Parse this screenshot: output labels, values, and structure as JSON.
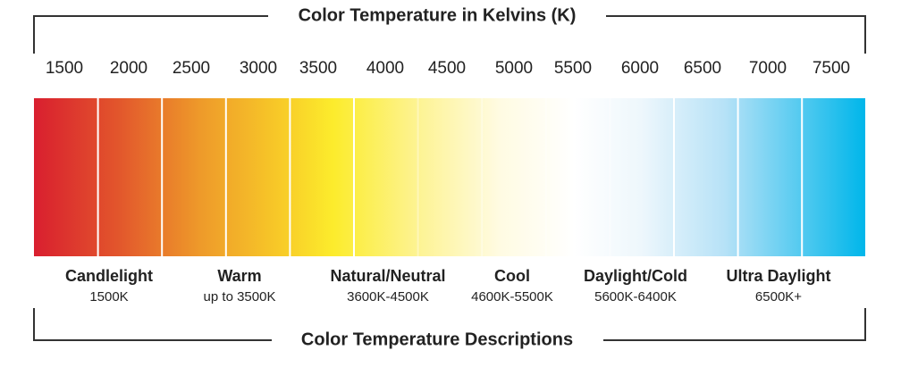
{
  "header": {
    "title": "Color Temperature in Kelvins (K)"
  },
  "scale": {
    "labels": [
      1500,
      2000,
      2500,
      3000,
      3500,
      4000,
      4500,
      5000,
      5500,
      6000,
      6500,
      7000,
      7500
    ]
  },
  "descriptions": [
    {
      "name": "Candlelight",
      "range": "1500K"
    },
    {
      "name": "Warm",
      "range": "up to 3500K"
    },
    {
      "name": "Natural/Neutral",
      "range": "3600K-4500K"
    },
    {
      "name": "Cool",
      "range": "4600K-5500K"
    },
    {
      "name": "Daylight/Cold",
      "range": "5600K-6400K"
    },
    {
      "name": "Ultra Daylight",
      "range": "6500K+"
    }
  ],
  "footer": {
    "title": "Color Temperature Descriptions"
  }
}
